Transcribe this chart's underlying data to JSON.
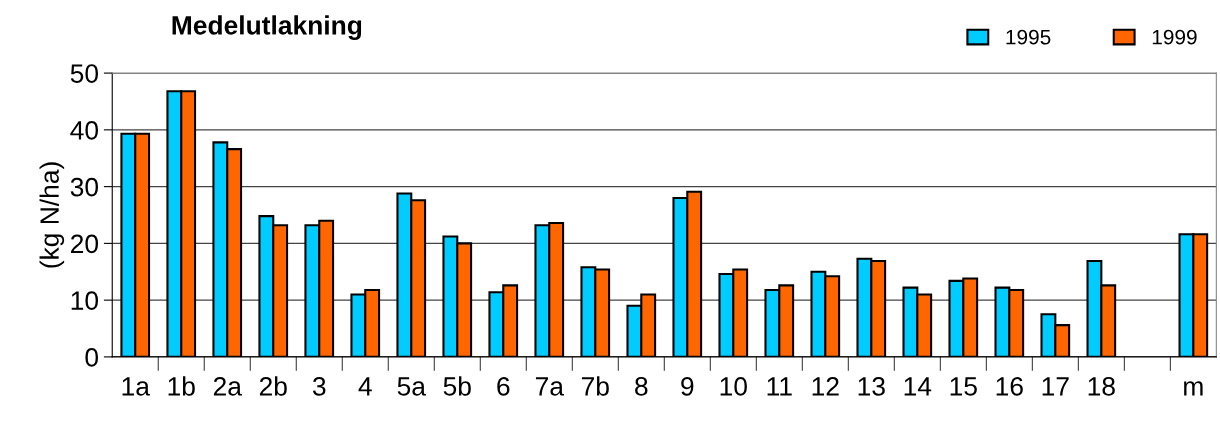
{
  "chart_data": {
    "type": "bar",
    "title": "Medelutlakning",
    "ylabel": "(kg N/ha)",
    "categories": [
      "1a",
      "1b",
      "2a",
      "2b",
      "3",
      "4",
      "5a",
      "5b",
      "6",
      "7a",
      "7b",
      "8",
      "9",
      "10",
      "11",
      "12",
      "13",
      "14",
      "15",
      "16",
      "17",
      "18",
      null,
      "m"
    ],
    "series": [
      {
        "name": "1995",
        "color": "#00ccff",
        "values": [
          39.3,
          46.8,
          37.8,
          24.8,
          23.2,
          11.0,
          28.8,
          21.2,
          11.4,
          23.2,
          15.8,
          9.0,
          28.0,
          14.6,
          11.8,
          15.0,
          17.3,
          12.2,
          13.4,
          12.2,
          7.5,
          16.9,
          null,
          21.6
        ]
      },
      {
        "name": "1999",
        "color": "#ff6600",
        "values": [
          39.3,
          46.8,
          36.6,
          23.2,
          24.0,
          11.8,
          27.6,
          20.0,
          12.6,
          23.6,
          15.4,
          11.0,
          29.1,
          15.4,
          12.6,
          14.2,
          16.9,
          11.0,
          13.8,
          11.8,
          5.6,
          12.6,
          null,
          21.6
        ]
      }
    ],
    "ylim": [
      0,
      50
    ],
    "yticks": [
      0,
      10,
      20,
      30,
      40,
      50
    ],
    "grid": "y",
    "legend": "top right"
  }
}
